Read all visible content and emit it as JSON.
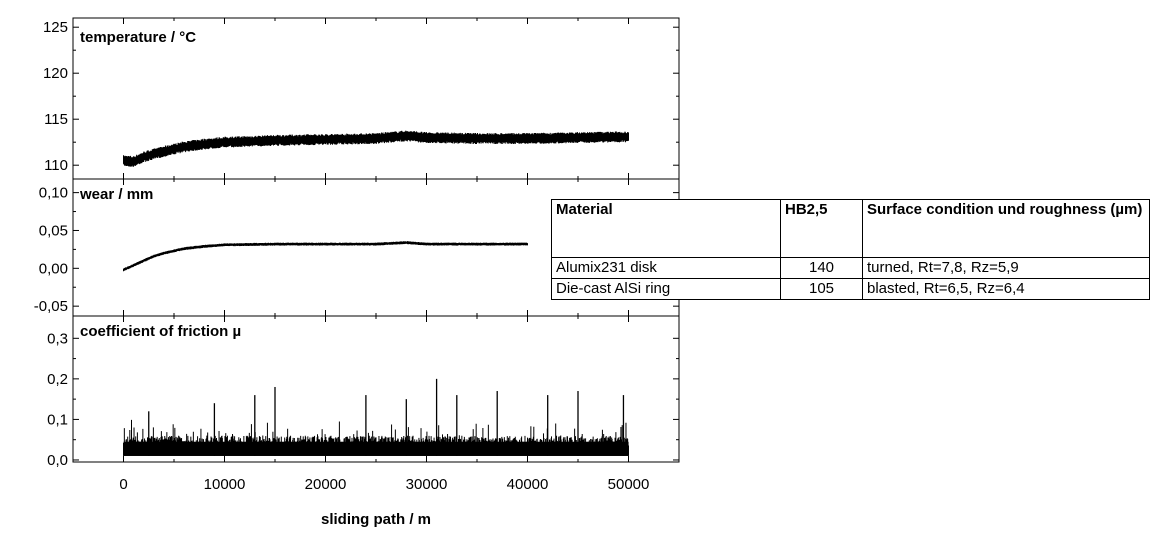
{
  "chart_data": [
    {
      "type": "line",
      "title": "temperature / °C",
      "xlabel": "sliding path / m",
      "xlim": [
        -5000,
        55000
      ],
      "ylim": [
        108.5,
        126
      ],
      "yticks": [
        110,
        115,
        120,
        125
      ],
      "ytick_labels": [
        "110",
        "115",
        "120",
        "125"
      ],
      "grid": false,
      "series": [
        {
          "x": [
            0,
            1000,
            2000,
            4000,
            6000,
            8000,
            10000,
            15000,
            20000,
            25000,
            28000,
            30000,
            35000,
            40000,
            45000,
            50000
          ],
          "y": [
            110.5,
            110.4,
            110.9,
            111.5,
            112.0,
            112.3,
            112.5,
            112.7,
            112.8,
            112.9,
            113.2,
            113.0,
            112.9,
            112.9,
            113.0,
            113.1
          ],
          "band_width": 1.2
        }
      ],
      "color": "#000000"
    },
    {
      "type": "line",
      "title": "wear / mm",
      "xlabel": "sliding path / m",
      "xlim": [
        -5000,
        55000
      ],
      "ylim": [
        -0.063,
        0.118
      ],
      "yticks": [
        -0.05,
        0.0,
        0.05,
        0.1
      ],
      "ytick_labels": [
        "-0,05",
        "0,00",
        "0,05",
        "0,10"
      ],
      "grid": false,
      "series": [
        {
          "x": [
            0,
            1000,
            2000,
            3000,
            4000,
            6000,
            8000,
            10000,
            15000,
            20000,
            25000,
            28000,
            30000,
            35000,
            40000
          ],
          "y": [
            -0.002,
            0.004,
            0.01,
            0.016,
            0.02,
            0.026,
            0.029,
            0.031,
            0.032,
            0.032,
            0.032,
            0.034,
            0.032,
            0.032,
            0.032
          ],
          "band_width": 0.004
        }
      ],
      "color": "#000000"
    },
    {
      "type": "line",
      "title": "coefficient of friction µ",
      "xlabel": "sliding path / m",
      "xticks": [
        0,
        10000,
        20000,
        30000,
        40000,
        50000
      ],
      "xtick_labels": [
        "0",
        "10000",
        "20000",
        "30000",
        "40000",
        "50000"
      ],
      "xlim": [
        -5000,
        55000
      ],
      "ylim": [
        -0.005,
        0.355
      ],
      "yticks": [
        0.0,
        0.1,
        0.2,
        0.3
      ],
      "ytick_labels": [
        "0,0",
        "0,1",
        "0,2",
        "0,3"
      ],
      "grid": false,
      "series": [
        {
          "x_range": [
            0,
            50000
          ],
          "baseline": 0.01,
          "band_top": 0.06,
          "spikes": [
            {
              "x": 2500,
              "y": 0.12
            },
            {
              "x": 9000,
              "y": 0.14
            },
            {
              "x": 13000,
              "y": 0.16
            },
            {
              "x": 15000,
              "y": 0.18
            },
            {
              "x": 24000,
              "y": 0.16
            },
            {
              "x": 28000,
              "y": 0.15
            },
            {
              "x": 31000,
              "y": 0.2
            },
            {
              "x": 33000,
              "y": 0.16
            },
            {
              "x": 37000,
              "y": 0.17
            },
            {
              "x": 42000,
              "y": 0.16
            },
            {
              "x": 45000,
              "y": 0.17
            },
            {
              "x": 49500,
              "y": 0.16
            }
          ]
        }
      ],
      "color": "#000000"
    }
  ],
  "table": {
    "headers": [
      "Material",
      "HB2,5",
      "Surface condition und roughness (µm)"
    ],
    "rows": [
      [
        "Alumix231 disk",
        "140",
        "turned, Rt=7,8, Rz=5,9"
      ],
      [
        "Die-cast AlSi ring",
        "105",
        "blasted, Rt=6,5, Rz=6,4"
      ]
    ]
  }
}
